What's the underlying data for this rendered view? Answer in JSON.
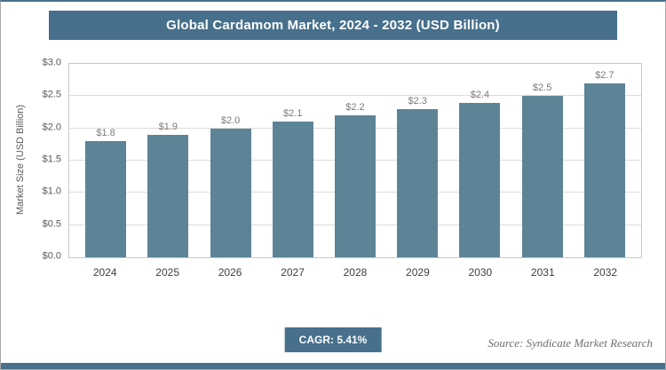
{
  "header": {
    "title": "Global Cardamom Market, 2024 - 2032 (USD Billion)"
  },
  "footer": {
    "cagr_label": "CAGR: 5.41%",
    "source": "Source: Syndicate Market Research"
  },
  "colors": {
    "accent": "#47708c",
    "bar": "#5d8496"
  },
  "chart_data": {
    "type": "bar",
    "title": "Global Cardamom Market, 2024 - 2032 (USD Billion)",
    "categories": [
      "2024",
      "2025",
      "2026",
      "2027",
      "2028",
      "2029",
      "2030",
      "2031",
      "2032"
    ],
    "values": [
      1.8,
      1.9,
      2.0,
      2.1,
      2.2,
      2.3,
      2.4,
      2.5,
      2.7
    ],
    "value_labels": [
      "$1.8",
      "$1.9",
      "$2.0",
      "$2.1",
      "$2.2",
      "$2.3",
      "$2.4",
      "$2.5",
      "$2.7"
    ],
    "xlabel": "",
    "ylabel": "Market Size (USD Billion)",
    "ylim": [
      0,
      3.0
    ],
    "yticks": [
      "$0.0",
      "$0.5",
      "$1.0",
      "$1.5",
      "$2.0",
      "$2.5",
      "$3.0"
    ],
    "grid": true,
    "legend": false
  }
}
